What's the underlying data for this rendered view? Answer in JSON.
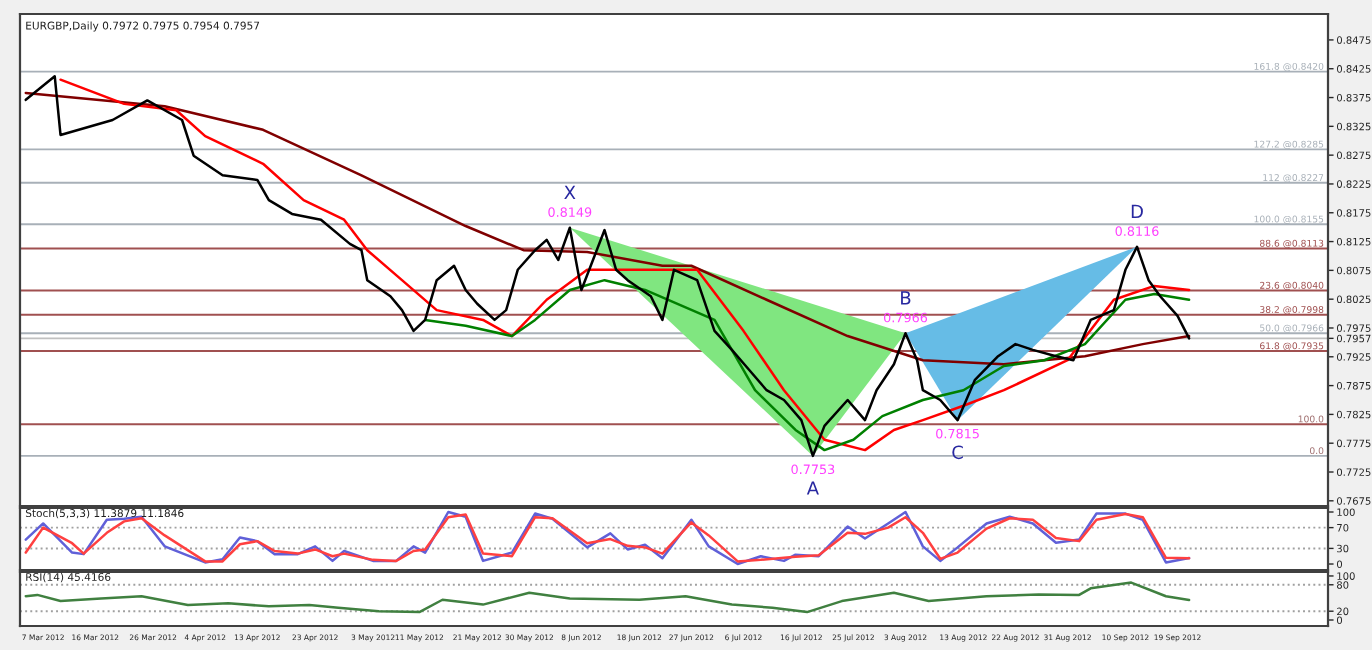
{
  "chart_data": [
    {
      "type": "line",
      "title": "EURGBP,Daily 0.7972 0.7975 0.7954 0.7957",
      "xlim": [
        "2012-03-03",
        "2012-10-15"
      ],
      "ylim": [
        0.7666,
        0.852
      ],
      "tick_labels": "y",
      "yticks": [
        0.8475,
        0.8425,
        0.8375,
        0.8325,
        0.8275,
        0.8225,
        0.8175,
        0.8125,
        0.8075,
        0.8025,
        0.7975,
        {
          "value": 0.7957,
          "label": "0.7957"
        },
        0.7925,
        0.7875,
        0.7825,
        0.7775,
        0.7725,
        0.7675
      ],
      "series": [
        {
          "type": "area",
          "color": "#80e680",
          "x": [
            "2012-06-06",
            "2012-07-18",
            "2012-08-03"
          ],
          "values": [
            0.8149,
            0.7753,
            0.7966
          ]
        },
        {
          "type": "area",
          "color": "#66bce6",
          "x": [
            "2012-08-03",
            "2012-08-12",
            "2012-09-12"
          ],
          "values": [
            0.7966,
            0.7815,
            0.8116
          ]
        },
        {
          "type": "line",
          "color": "#800000",
          "x": [
            "2012-03-04",
            "2012-03-28",
            "2012-04-14",
            "2012-05-01",
            "2012-05-19",
            "2012-05-29",
            "2012-06-09",
            "2012-06-22",
            "2012-06-27",
            "2012-07-10",
            "2012-07-24",
            "2012-08-06",
            "2012-08-20",
            "2012-09-03",
            "2012-09-13",
            "2012-09-21"
          ],
          "values": [
            0.8383,
            0.836,
            0.8319,
            0.824,
            0.8152,
            0.811,
            0.8107,
            0.8083,
            0.8083,
            0.8024,
            0.7961,
            0.7919,
            0.7912,
            0.7926,
            0.7947,
            0.7961
          ]
        },
        {
          "type": "line",
          "color": "#ff0000",
          "x": [
            "2012-03-10",
            "2012-03-21",
            "2012-03-30",
            "2012-04-04",
            "2012-04-14",
            "2012-04-21",
            "2012-04-28",
            "2012-05-02",
            "2012-05-08",
            "2012-05-14",
            "2012-05-22",
            "2012-05-27",
            "2012-06-02",
            "2012-06-09",
            "2012-06-28",
            "2012-07-06",
            "2012-07-13",
            "2012-07-20",
            "2012-07-27",
            "2012-08-01",
            "2012-08-06",
            "2012-08-13",
            "2012-08-20",
            "2012-08-31",
            "2012-09-08",
            "2012-09-15",
            "2012-09-21"
          ],
          "values": [
            0.8406,
            0.8364,
            0.8353,
            0.8308,
            0.826,
            0.8197,
            0.8163,
            0.811,
            0.8058,
            0.8006,
            0.7989,
            0.7961,
            0.8024,
            0.8076,
            0.8076,
            0.797,
            0.7867,
            0.7781,
            0.7763,
            0.7798,
            0.7815,
            0.784,
            0.7867,
            0.7919,
            0.8024,
            0.8048,
            0.8041
          ]
        },
        {
          "type": "line",
          "color": "#008000",
          "x": [
            "2012-05-12",
            "2012-05-19",
            "2012-05-27",
            "2012-05-31",
            "2012-06-06",
            "2012-06-12",
            "2012-06-19",
            "2012-07-01",
            "2012-07-08",
            "2012-07-15",
            "2012-07-20",
            "2012-07-25",
            "2012-07-30",
            "2012-08-06",
            "2012-08-13",
            "2012-08-20",
            "2012-08-27",
            "2012-09-03",
            "2012-09-10",
            "2012-09-15",
            "2012-09-21"
          ],
          "values": [
            0.7989,
            0.7979,
            0.7961,
            0.7989,
            0.8041,
            0.8058,
            0.8041,
            0.7989,
            0.7867,
            0.7798,
            0.7763,
            0.7781,
            0.7822,
            0.785,
            0.7867,
            0.7909,
            0.7919,
            0.7947,
            0.8024,
            0.8034,
            0.8024
          ]
        },
        {
          "type": "line",
          "color": "#000000",
          "x": [
            "2012-03-04",
            "2012-03-09",
            "2012-03-10",
            "2012-03-19",
            "2012-03-25",
            "2012-03-31",
            "2012-04-02",
            "2012-04-07",
            "2012-04-13",
            "2012-04-15",
            "2012-04-19",
            "2012-04-24",
            "2012-04-29",
            "2012-05-01",
            "2012-05-02",
            "2012-05-06",
            "2012-05-08",
            "2012-05-10",
            "2012-05-12",
            "2012-05-14",
            "2012-05-17",
            "2012-05-19",
            "2012-05-21",
            "2012-05-24",
            "2012-05-26",
            "2012-05-28",
            "2012-05-31",
            "2012-06-02",
            "2012-06-04",
            "2012-06-06",
            "2012-06-08",
            "2012-06-10",
            "2012-06-12",
            "2012-06-14",
            "2012-06-16",
            "2012-06-20",
            "2012-06-22",
            "2012-06-24",
            "2012-06-28",
            "2012-07-01",
            "2012-07-04",
            "2012-07-07",
            "2012-07-10",
            "2012-07-13",
            "2012-07-16",
            "2012-07-18",
            "2012-07-20",
            "2012-07-24",
            "2012-07-27",
            "2012-07-29",
            "2012-08-01",
            "2012-08-03",
            "2012-08-05",
            "2012-08-06",
            "2012-08-09",
            "2012-08-12",
            "2012-08-15",
            "2012-08-19",
            "2012-08-22",
            "2012-08-25",
            "2012-08-29",
            "2012-09-01",
            "2012-09-04",
            "2012-09-08",
            "2012-09-10",
            "2012-09-12",
            "2012-09-14",
            "2012-09-16",
            "2012-09-19",
            "2012-09-21"
          ],
          "values": [
            0.8371,
            0.8412,
            0.831,
            0.8336,
            0.837,
            0.8336,
            0.8274,
            0.824,
            0.8232,
            0.8197,
            0.8173,
            0.8163,
            0.8121,
            0.811,
            0.8058,
            0.803,
            0.8006,
            0.797,
            0.7989,
            0.8058,
            0.8083,
            0.8041,
            0.8017,
            0.7989,
            0.8006,
            0.8076,
            0.811,
            0.8128,
            0.8093,
            0.8149,
            0.8041,
            0.8093,
            0.8145,
            0.8076,
            0.8058,
            0.803,
            0.7989,
            0.8076,
            0.8058,
            0.797,
            0.7937,
            0.7902,
            0.7867,
            0.785,
            0.7815,
            0.7753,
            0.7805,
            0.785,
            0.7815,
            0.7867,
            0.7912,
            0.7966,
            0.7919,
            0.7867,
            0.785,
            0.7815,
            0.7885,
            0.7926,
            0.7947,
            0.7937,
            0.7926,
            0.7919,
            0.7989,
            0.8006,
            0.8076,
            0.8116,
            0.8058,
            0.803,
            0.7996,
            0.7957
          ]
        }
      ],
      "ref_lines": [
        {
          "axis": "y",
          "value": 0.842,
          "label": "161.8 @0.8420",
          "color": "#a8b0b8"
        },
        {
          "axis": "y",
          "value": 0.8285,
          "label": "127.2 @0.8285",
          "color": "#a8b0b8"
        },
        {
          "axis": "y",
          "value": 0.8227,
          "label": "112 @0.8227",
          "color": "#a8b0b8"
        },
        {
          "axis": "y",
          "value": 0.8155,
          "label": "100.0 @0.8155",
          "color": "#a8b0b8"
        },
        {
          "axis": "y",
          "value": 0.8113,
          "label": "88.6 @0.8113",
          "color": "#a05050"
        },
        {
          "axis": "y",
          "value": 0.804,
          "label": "23.6 @0.8040",
          "color": "#a05050"
        },
        {
          "axis": "y",
          "value": 0.7998,
          "label": "38.2 @0.7998",
          "color": "#a05050"
        },
        {
          "axis": "y",
          "value": 0.7966,
          "label": "50.0 @0.7966",
          "color": "#a8b0b8"
        },
        {
          "axis": "y",
          "value": 0.7957,
          "label": null,
          "color": "#c0c0c0"
        },
        {
          "axis": "y",
          "value": 0.7935,
          "label": "61.8 @0.7935",
          "color": "#a05050"
        },
        {
          "axis": "y",
          "value": 0.7808,
          "label": null,
          "color": "#a05050"
        },
        {
          "axis": "y",
          "value": 0.7753,
          "label": null,
          "color": "#a8b0b8"
        }
      ],
      "annotations": [
        {
          "text": "X",
          "x": "2012-06-06",
          "y": 0.8149
        },
        {
          "text": "0.8149",
          "x": "2012-06-06",
          "y": 0.8149
        },
        {
          "text": "A",
          "x": "2012-07-18",
          "y": 0.7753
        },
        {
          "text": "0.7753",
          "x": "2012-07-18",
          "y": 0.7753
        },
        {
          "text": "B",
          "x": "2012-08-03",
          "y": 0.7966
        },
        {
          "text": "0.7966",
          "x": "2012-08-03",
          "y": 0.7966
        },
        {
          "text": "C",
          "x": "2012-08-12",
          "y": 0.7815
        },
        {
          "text": "0.7815",
          "x": "2012-08-12",
          "y": 0.7815
        },
        {
          "text": "D",
          "x": "2012-09-12",
          "y": 0.8116
        },
        {
          "text": "0.8116",
          "x": "2012-09-12",
          "y": 0.8116
        },
        {
          "text": "100.0",
          "x": "2012-10-15",
          "y": 0.7808
        },
        {
          "text": "0.0",
          "x": "2012-10-15",
          "y": 0.7753
        }
      ]
    },
    {
      "type": "line",
      "title": "Stoch(5,3,3) 11.3879 11.1846",
      "xlim": [
        "2012-03-03",
        "2012-10-15"
      ],
      "ylim": [
        -11.5,
        107.7
      ],
      "tick_labels": "y",
      "yticks": [
        100,
        70,
        30,
        0
      ],
      "ref_lines": [
        {
          "axis": "y",
          "value": 70,
          "color": "#a0a0a0",
          "line_style": "dotted"
        },
        {
          "axis": "y",
          "value": 30,
          "color": "#a0a0a0",
          "line_style": "dotted"
        }
      ],
      "series": [
        {
          "color": "#6060d8",
          "x": [
            "2012-03-04",
            "2012-03-07",
            "2012-03-12",
            "2012-03-14",
            "2012-03-18",
            "2012-03-21",
            "2012-03-24",
            "2012-03-28",
            "2012-04-04",
            "2012-04-07",
            "2012-04-10",
            "2012-04-13",
            "2012-04-16",
            "2012-04-20",
            "2012-04-23",
            "2012-04-26",
            "2012-04-28",
            "2012-05-03",
            "2012-05-07",
            "2012-05-10",
            "2012-05-12",
            "2012-05-16",
            "2012-05-19",
            "2012-05-22",
            "2012-05-27",
            "2012-05-31",
            "2012-06-03",
            "2012-06-09",
            "2012-06-13",
            "2012-06-16",
            "2012-06-19",
            "2012-06-22",
            "2012-06-27",
            "2012-06-30",
            "2012-07-05",
            "2012-07-09",
            "2012-07-13",
            "2012-07-15",
            "2012-07-19",
            "2012-07-24",
            "2012-07-27",
            "2012-07-31",
            "2012-08-03",
            "2012-08-06",
            "2012-08-09",
            "2012-08-12",
            "2012-08-17",
            "2012-08-21",
            "2012-08-25",
            "2012-08-29",
            "2012-09-02",
            "2012-09-05",
            "2012-09-10",
            "2012-09-13",
            "2012-09-17",
            "2012-09-21"
          ],
          "values": [
            47,
            78,
            22,
            19,
            85,
            87,
            91,
            34,
            3,
            9,
            51,
            44,
            19,
            19,
            34,
            6,
            25,
            6,
            6,
            34,
            22,
            100,
            91,
            6,
            22,
            97,
            87,
            32,
            59,
            28,
            37,
            11,
            85,
            34,
            0,
            15,
            6,
            18,
            15,
            72,
            49,
            78,
            100,
            34,
            6,
            32,
            78,
            91,
            78,
            41,
            47,
            97,
            97,
            85,
            3,
            11.3879
          ]
        },
        {
          "color": "#ff4040",
          "x": [
            "2012-03-04",
            "2012-03-07",
            "2012-03-12",
            "2012-03-14",
            "2012-03-18",
            "2012-03-21",
            "2012-03-24",
            "2012-03-28",
            "2012-04-04",
            "2012-04-07",
            "2012-04-10",
            "2012-04-13",
            "2012-04-16",
            "2012-04-20",
            "2012-04-23",
            "2012-04-26",
            "2012-04-28",
            "2012-05-03",
            "2012-05-07",
            "2012-05-10",
            "2012-05-12",
            "2012-05-16",
            "2012-05-19",
            "2012-05-22",
            "2012-05-27",
            "2012-05-31",
            "2012-06-03",
            "2012-06-09",
            "2012-06-13",
            "2012-06-16",
            "2012-06-19",
            "2012-06-22",
            "2012-06-27",
            "2012-06-30",
            "2012-07-05",
            "2012-07-09",
            "2012-07-13",
            "2012-07-15",
            "2012-07-19",
            "2012-07-24",
            "2012-07-27",
            "2012-07-31",
            "2012-08-03",
            "2012-08-06",
            "2012-08-09",
            "2012-08-12",
            "2012-08-17",
            "2012-08-21",
            "2012-08-25",
            "2012-08-29",
            "2012-09-02",
            "2012-09-05",
            "2012-09-10",
            "2012-09-13",
            "2012-09-17",
            "2012-09-21"
          ],
          "values": [
            22,
            70,
            40,
            20,
            60,
            82,
            88,
            55,
            5,
            5,
            38,
            44,
            25,
            20,
            28,
            15,
            20,
            8,
            6,
            25,
            28,
            90,
            95,
            20,
            15,
            90,
            88,
            40,
            48,
            35,
            32,
            20,
            80,
            55,
            5,
            8,
            12,
            14,
            17,
            60,
            58,
            70,
            90,
            60,
            10,
            22,
            68,
            88,
            85,
            50,
            44,
            85,
            96,
            90,
            12,
            11.1846
          ]
        }
      ]
    },
    {
      "type": "line",
      "title": "RSI(14) 45.4166",
      "xlim": [
        "2012-03-03",
        "2012-10-15"
      ],
      "ylim": [
        -13.6,
        109
      ],
      "yticks": [
        100,
        80,
        20,
        0
      ],
      "xticks": [
        {
          "value": "2012-03-07",
          "label": "7 Mar 2012"
        },
        {
          "value": "2012-03-16",
          "label": "16 Mar 2012"
        },
        {
          "value": "2012-03-26",
          "label": "26 Mar 2012"
        },
        {
          "value": "2012-04-04",
          "label": "4 Apr 2012"
        },
        {
          "value": "2012-04-13",
          "label": "13 Apr 2012"
        },
        {
          "value": "2012-04-23",
          "label": "23 Apr 2012"
        },
        {
          "value": "2012-05-03",
          "label": "3 May 2012"
        },
        {
          "value": "2012-05-11",
          "label": "11 May 2012"
        },
        {
          "value": "2012-05-21",
          "label": "21 May 2012"
        },
        {
          "value": "2012-05-30",
          "label": "30 May 2012"
        },
        {
          "value": "2012-06-08",
          "label": "8 Jun 2012"
        },
        {
          "value": "2012-06-18",
          "label": "18 Jun 2012"
        },
        {
          "value": "2012-06-27",
          "label": "27 Jun 2012"
        },
        {
          "value": "2012-07-06",
          "label": "6 Jul 2012"
        },
        {
          "value": "2012-07-16",
          "label": "16 Jul 2012"
        },
        {
          "value": "2012-07-25",
          "label": "25 Jul 2012"
        },
        {
          "value": "2012-08-03",
          "label": "3 Aug 2012"
        },
        {
          "value": "2012-08-13",
          "label": "13 Aug 2012"
        },
        {
          "value": "2012-08-22",
          "label": "22 Aug 2012"
        },
        {
          "value": "2012-08-31",
          "label": "31 Aug 2012"
        },
        {
          "value": "2012-09-10",
          "label": "10 Sep 2012"
        },
        {
          "value": "2012-09-19",
          "label": "19 Sep 2012"
        }
      ],
      "ref_lines": [
        {
          "axis": "y",
          "value": 80,
          "color": "#a0a0a0",
          "line_style": "dotted"
        },
        {
          "axis": "y",
          "value": 20,
          "color": "#a0a0a0",
          "line_style": "dotted"
        }
      ],
      "series": [
        {
          "color": "#408040",
          "x": [
            "2012-03-04",
            "2012-03-06",
            "2012-03-10",
            "2012-03-17",
            "2012-03-24",
            "2012-04-01",
            "2012-04-08",
            "2012-04-15",
            "2012-04-22",
            "2012-04-27",
            "2012-05-04",
            "2012-05-11",
            "2012-05-15",
            "2012-05-22",
            "2012-05-30",
            "2012-06-06",
            "2012-06-18",
            "2012-06-26",
            "2012-07-04",
            "2012-07-11",
            "2012-07-17",
            "2012-07-23",
            "2012-08-01",
            "2012-08-07",
            "2012-08-17",
            "2012-08-26",
            "2012-09-02",
            "2012-09-04",
            "2012-09-11",
            "2012-09-17",
            "2012-09-21"
          ],
          "values": [
            54,
            57,
            43,
            49,
            54,
            34,
            38,
            31,
            34,
            28,
            20,
            18,
            46,
            35,
            62,
            49,
            46,
            54,
            35,
            28,
            18,
            43,
            62,
            43,
            54,
            58,
            57,
            72,
            85,
            54,
            45.4166
          ]
        }
      ]
    }
  ]
}
